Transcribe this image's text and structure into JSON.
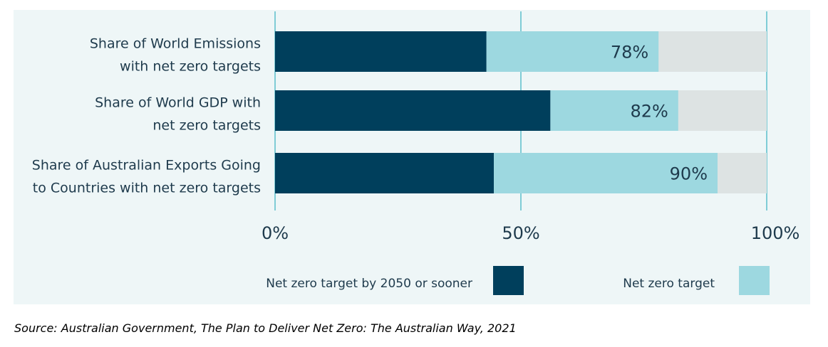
{
  "chart_data": {
    "type": "bar",
    "orientation": "horizontal",
    "stacked": true,
    "categories": [
      [
        "Share of World Emissions",
        "with net zero targets"
      ],
      [
        "Share of World GDP with",
        "net zero targets"
      ],
      [
        "Share of Australian Exports Going",
        "to Countries with net zero targets"
      ]
    ],
    "series": [
      {
        "name": "Net zero target by 2050 or sooner",
        "values": [
          43,
          56,
          44.5
        ],
        "color": "#003f5c"
      },
      {
        "name": "Net zero target",
        "values": [
          35,
          26,
          45.5
        ],
        "color": "#9dd8e0"
      }
    ],
    "remainder_color": "#dde3e3",
    "totals": [
      78,
      82,
      90
    ],
    "data_labels": [
      "78%",
      "82%",
      "90%"
    ],
    "xlim": [
      0,
      100
    ],
    "xticks": [
      0,
      50,
      100
    ],
    "xtick_labels": [
      "0%",
      "50%",
      "100%"
    ],
    "grid": true,
    "gridline_color": "#7fccd6",
    "legend": "bottom",
    "panel_background": "#eef6f7"
  },
  "source": "Source: Australian Government, The Plan to Deliver Net Zero: The Australian Way, 2021"
}
